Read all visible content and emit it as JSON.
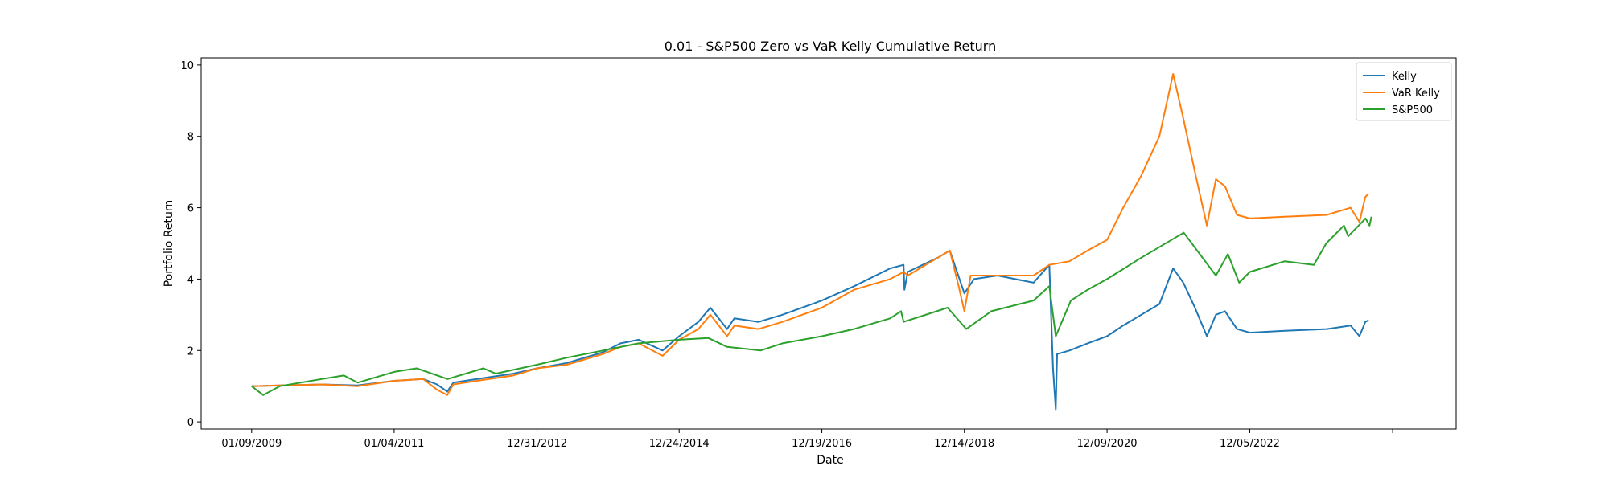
{
  "chart_data": {
    "type": "line",
    "title": "0.01 - S&P500 Zero vs VaR Kelly Cumulative Return",
    "xlabel": "Date",
    "ylabel": "Portfolio Return",
    "xlim": [
      "2008-04-27",
      "2025-10-20"
    ],
    "ylim": [
      -0.2,
      10.2
    ],
    "x_ticks": [
      "01/09/2009",
      "01/04/2011",
      "12/31/2012",
      "12/24/2014",
      "12/19/2016",
      "12/14/2018",
      "12/09/2020",
      "12/05/2022"
    ],
    "y_ticks": [
      0,
      2,
      4,
      6,
      8,
      10
    ],
    "grid": false,
    "legend": "top-right",
    "series": [
      {
        "name": "Kelly",
        "color": "#1f77b4",
        "points": [
          [
            "2009-01-09",
            1.0
          ],
          [
            "2009-06-01",
            1.02
          ],
          [
            "2010-01-01",
            1.05
          ],
          [
            "2010-07-01",
            1.02
          ],
          [
            "2011-01-04",
            1.15
          ],
          [
            "2011-06-01",
            1.2
          ],
          [
            "2011-08-10",
            1.05
          ],
          [
            "2011-10-01",
            0.85
          ],
          [
            "2011-11-01",
            1.1
          ],
          [
            "2012-03-01",
            1.2
          ],
          [
            "2012-09-01",
            1.35
          ],
          [
            "2012-12-31",
            1.5
          ],
          [
            "2013-06-01",
            1.65
          ],
          [
            "2013-12-01",
            1.95
          ],
          [
            "2014-03-01",
            2.2
          ],
          [
            "2014-06-01",
            2.3
          ],
          [
            "2014-10-01",
            2.0
          ],
          [
            "2014-12-24",
            2.4
          ],
          [
            "2015-04-01",
            2.8
          ],
          [
            "2015-06-01",
            3.2
          ],
          [
            "2015-08-25",
            2.6
          ],
          [
            "2015-10-01",
            2.9
          ],
          [
            "2016-02-01",
            2.8
          ],
          [
            "2016-06-01",
            3.0
          ],
          [
            "2016-12-19",
            3.4
          ],
          [
            "2017-06-01",
            3.8
          ],
          [
            "2017-12-01",
            4.3
          ],
          [
            "2018-02-08",
            4.4
          ],
          [
            "2018-02-12",
            3.7
          ],
          [
            "2018-03-01",
            4.2
          ],
          [
            "2018-08-01",
            4.6
          ],
          [
            "2018-10-01",
            4.8
          ],
          [
            "2018-12-14",
            3.6
          ],
          [
            "2019-02-01",
            4.0
          ],
          [
            "2019-06-01",
            4.1
          ],
          [
            "2019-12-01",
            3.9
          ],
          [
            "2020-02-19",
            4.4
          ],
          [
            "2020-03-09",
            1.5
          ],
          [
            "2020-03-23",
            0.35
          ],
          [
            "2020-03-30",
            1.9
          ],
          [
            "2020-06-01",
            2.0
          ],
          [
            "2020-09-01",
            2.2
          ],
          [
            "2020-12-09",
            2.4
          ],
          [
            "2021-03-01",
            2.7
          ],
          [
            "2021-06-01",
            3.0
          ],
          [
            "2021-09-01",
            3.3
          ],
          [
            "2021-11-10",
            4.3
          ],
          [
            "2022-01-01",
            3.9
          ],
          [
            "2022-03-01",
            3.2
          ],
          [
            "2022-05-01",
            2.4
          ],
          [
            "2022-06-16",
            3.0
          ],
          [
            "2022-08-01",
            3.1
          ],
          [
            "2022-10-01",
            2.6
          ],
          [
            "2022-12-05",
            2.5
          ],
          [
            "2023-06-01",
            2.55
          ],
          [
            "2024-01-01",
            2.6
          ],
          [
            "2024-05-01",
            2.7
          ],
          [
            "2024-06-15",
            2.4
          ],
          [
            "2024-07-15",
            2.8
          ],
          [
            "2024-08-01",
            2.85
          ]
        ]
      },
      {
        "name": "VaR Kelly",
        "color": "#ff7f0e",
        "points": [
          [
            "2009-01-09",
            1.0
          ],
          [
            "2009-06-01",
            1.02
          ],
          [
            "2010-01-01",
            1.05
          ],
          [
            "2010-07-01",
            1.0
          ],
          [
            "2011-01-04",
            1.15
          ],
          [
            "2011-06-01",
            1.2
          ],
          [
            "2011-08-10",
            0.9
          ],
          [
            "2011-10-01",
            0.75
          ],
          [
            "2011-11-01",
            1.05
          ],
          [
            "2012-03-01",
            1.15
          ],
          [
            "2012-09-01",
            1.3
          ],
          [
            "2012-12-31",
            1.5
          ],
          [
            "2013-06-01",
            1.6
          ],
          [
            "2013-12-01",
            1.9
          ],
          [
            "2014-03-01",
            2.1
          ],
          [
            "2014-06-01",
            2.2
          ],
          [
            "2014-10-01",
            1.85
          ],
          [
            "2014-12-24",
            2.3
          ],
          [
            "2015-04-01",
            2.6
          ],
          [
            "2015-06-01",
            3.0
          ],
          [
            "2015-08-25",
            2.4
          ],
          [
            "2015-10-01",
            2.7
          ],
          [
            "2016-02-01",
            2.6
          ],
          [
            "2016-06-01",
            2.8
          ],
          [
            "2016-12-19",
            3.2
          ],
          [
            "2017-06-01",
            3.7
          ],
          [
            "2017-12-01",
            4.0
          ],
          [
            "2018-02-08",
            4.2
          ],
          [
            "2018-03-01",
            4.1
          ],
          [
            "2018-06-01",
            4.4
          ],
          [
            "2018-08-01",
            4.6
          ],
          [
            "2018-10-01",
            4.8
          ],
          [
            "2018-11-15",
            3.8
          ],
          [
            "2018-12-14",
            3.1
          ],
          [
            "2019-01-15",
            4.1
          ],
          [
            "2019-06-01",
            4.1
          ],
          [
            "2019-12-01",
            4.1
          ],
          [
            "2020-02-19",
            4.4
          ],
          [
            "2020-06-01",
            4.5
          ],
          [
            "2020-09-01",
            4.8
          ],
          [
            "2020-12-09",
            5.1
          ],
          [
            "2021-03-01",
            6.0
          ],
          [
            "2021-06-01",
            6.9
          ],
          [
            "2021-09-01",
            8.0
          ],
          [
            "2021-11-10",
            9.75
          ],
          [
            "2022-01-01",
            8.5
          ],
          [
            "2022-03-01",
            7.0
          ],
          [
            "2022-05-01",
            5.5
          ],
          [
            "2022-06-16",
            6.8
          ],
          [
            "2022-08-01",
            6.6
          ],
          [
            "2022-10-01",
            5.8
          ],
          [
            "2022-12-05",
            5.7
          ],
          [
            "2023-06-01",
            5.75
          ],
          [
            "2024-01-01",
            5.8
          ],
          [
            "2024-05-01",
            6.0
          ],
          [
            "2024-06-15",
            5.6
          ],
          [
            "2024-07-15",
            6.3
          ],
          [
            "2024-08-01",
            6.4
          ]
        ]
      },
      {
        "name": "S&P500",
        "color": "#2ca02c",
        "points": [
          [
            "2009-01-09",
            1.0
          ],
          [
            "2009-03-09",
            0.75
          ],
          [
            "2009-06-01",
            1.0
          ],
          [
            "2010-01-01",
            1.2
          ],
          [
            "2010-04-23",
            1.3
          ],
          [
            "2010-07-02",
            1.1
          ],
          [
            "2011-01-04",
            1.4
          ],
          [
            "2011-04-29",
            1.5
          ],
          [
            "2011-10-03",
            1.2
          ],
          [
            "2012-04-02",
            1.5
          ],
          [
            "2012-06-04",
            1.35
          ],
          [
            "2012-12-31",
            1.6
          ],
          [
            "2013-06-01",
            1.8
          ],
          [
            "2013-12-01",
            2.0
          ],
          [
            "2014-06-01",
            2.2
          ],
          [
            "2014-12-24",
            2.3
          ],
          [
            "2015-05-21",
            2.35
          ],
          [
            "2015-08-25",
            2.1
          ],
          [
            "2016-02-11",
            2.0
          ],
          [
            "2016-06-01",
            2.2
          ],
          [
            "2016-12-19",
            2.4
          ],
          [
            "2017-06-01",
            2.6
          ],
          [
            "2017-12-01",
            2.9
          ],
          [
            "2018-01-26",
            3.1
          ],
          [
            "2018-02-08",
            2.8
          ],
          [
            "2018-09-20",
            3.2
          ],
          [
            "2018-12-24",
            2.6
          ],
          [
            "2019-04-30",
            3.1
          ],
          [
            "2019-12-01",
            3.4
          ],
          [
            "2020-02-19",
            3.8
          ],
          [
            "2020-03-23",
            2.4
          ],
          [
            "2020-06-08",
            3.4
          ],
          [
            "2020-09-01",
            3.7
          ],
          [
            "2020-12-09",
            4.0
          ],
          [
            "2021-06-01",
            4.6
          ],
          [
            "2022-01-03",
            5.3
          ],
          [
            "2022-06-16",
            4.1
          ],
          [
            "2022-08-16",
            4.7
          ],
          [
            "2022-10-12",
            3.9
          ],
          [
            "2022-12-05",
            4.2
          ],
          [
            "2023-06-01",
            4.5
          ],
          [
            "2023-10-27",
            4.4
          ],
          [
            "2023-12-29",
            5.0
          ],
          [
            "2024-03-28",
            5.5
          ],
          [
            "2024-04-19",
            5.2
          ],
          [
            "2024-07-16",
            5.7
          ],
          [
            "2024-08-05",
            5.5
          ],
          [
            "2024-08-15",
            5.75
          ]
        ]
      }
    ]
  }
}
